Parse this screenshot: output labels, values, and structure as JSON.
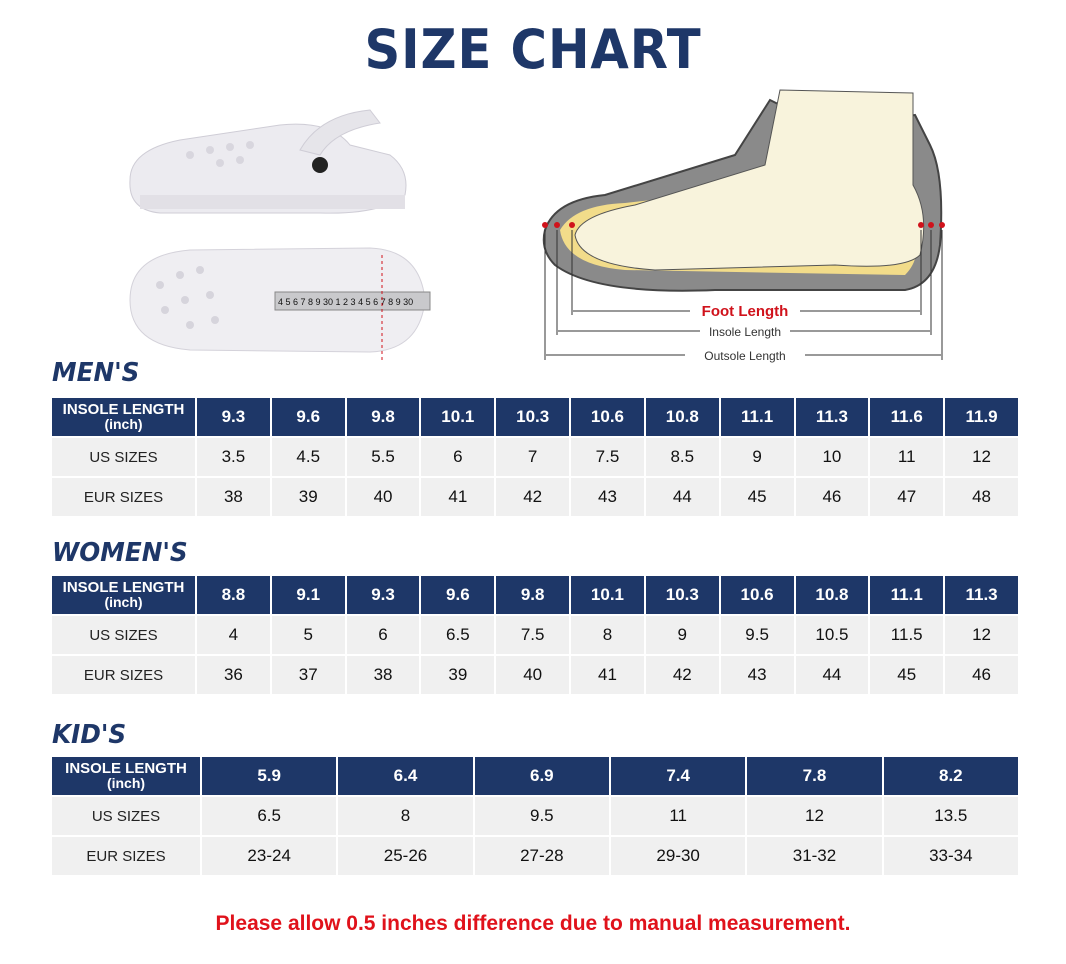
{
  "title": "SIZE CHART",
  "diagram": {
    "foot_length": "Foot Length",
    "insole_length": "Insole Length",
    "outsole_length": "Outsole Length",
    "accent": "#d0121b"
  },
  "tape_numbers": "4 5 6 7 8 9 30 1 2 3 4 5 6 7 8 9 30",
  "header_label": "INSOLE LENGTH",
  "header_unit": "(inch)",
  "row_labels": {
    "us": "US SIZES",
    "eur": "EUR SIZES"
  },
  "colors": {
    "navy": "#1e3768",
    "cell": "#f0f0f0",
    "note": "#e0121b"
  },
  "mens": {
    "title": "MEN'S",
    "insole": [
      "9.3",
      "9.6",
      "9.8",
      "10.1",
      "10.3",
      "10.6",
      "10.8",
      "11.1",
      "11.3",
      "11.6",
      "11.9"
    ],
    "us": [
      "3.5",
      "4.5",
      "5.5",
      "6",
      "7",
      "7.5",
      "8.5",
      "9",
      "10",
      "11",
      "12"
    ],
    "eur": [
      "38",
      "39",
      "40",
      "41",
      "42",
      "43",
      "44",
      "45",
      "46",
      "47",
      "48"
    ]
  },
  "womens": {
    "title": "WOMEN'S",
    "insole": [
      "8.8",
      "9.1",
      "9.3",
      "9.6",
      "9.8",
      "10.1",
      "10.3",
      "10.6",
      "10.8",
      "11.1",
      "11.3"
    ],
    "us": [
      "4",
      "5",
      "6",
      "6.5",
      "7.5",
      "8",
      "9",
      "9.5",
      "10.5",
      "11.5",
      "12"
    ],
    "eur": [
      "36",
      "37",
      "38",
      "39",
      "40",
      "41",
      "42",
      "43",
      "44",
      "45",
      "46"
    ]
  },
  "kids": {
    "title": "KID'S",
    "insole": [
      "5.9",
      "6.4",
      "6.9",
      "7.4",
      "7.8",
      "8.2"
    ],
    "us": [
      "6.5",
      "8",
      "9.5",
      "11",
      "12",
      "13.5"
    ],
    "eur": [
      "23-24",
      "25-26",
      "27-28",
      "29-30",
      "31-32",
      "33-34"
    ]
  },
  "note": "Please allow 0.5 inches difference due to manual measurement."
}
